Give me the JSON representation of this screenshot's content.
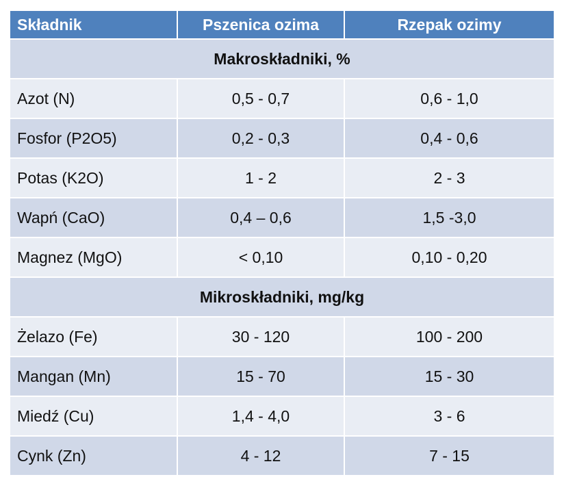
{
  "header": {
    "col1": "Składnik",
    "col2": "Pszenica ozima",
    "col3": "Rzepak ozimy"
  },
  "sections": [
    {
      "title": "Makroskładniki, %",
      "rows": [
        {
          "name": "Azot (N)",
          "wheat": "0,5 - 0,7",
          "rapeseed": "0,6 - 1,0"
        },
        {
          "name": "Fosfor (P2O5)",
          "wheat": "0,2 -  0,3",
          "rapeseed": "0,4 - 0,6"
        },
        {
          "name": "Potas (K2O)",
          "wheat": "1 - 2",
          "rapeseed": "2 - 3"
        },
        {
          "name": "Wapń (CaO)",
          "wheat": "0,4 – 0,6",
          "rapeseed": "1,5 -3,0"
        },
        {
          "name": "Magnez (MgO)",
          "wheat": "< 0,10",
          "rapeseed": "0,10 - 0,20"
        }
      ]
    },
    {
      "title": "Mikroskładniki, mg/kg",
      "rows": [
        {
          "name": "Żelazo (Fe)",
          "wheat": "30 - 120",
          "rapeseed": "100 - 200"
        },
        {
          "name": "Mangan (Mn)",
          "wheat": "15 - 70",
          "rapeseed": "15 - 30"
        },
        {
          "name": "Miedź (Cu)",
          "wheat": "1,4 - 4,0",
          "rapeseed": "3 - 6"
        },
        {
          "name": "Cynk (Zn)",
          "wheat": "4 - 12",
          "rapeseed": "7 - 15"
        }
      ]
    }
  ],
  "colors": {
    "header_bg": "#4f81bd",
    "row_light": "#e9edf4",
    "row_dark": "#d0d8e8"
  }
}
